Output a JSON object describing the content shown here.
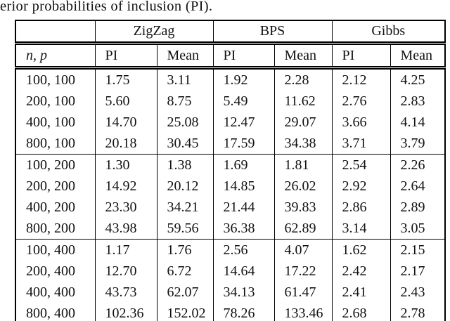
{
  "caption": "erior probabilities of inclusion (PI).",
  "table": {
    "corner_label": "",
    "group_headers": [
      "ZigZag",
      "BPS",
      "Gibbs"
    ],
    "row_key_header": "n, p",
    "metric_headers": [
      "PI",
      "Mean",
      "PI",
      "Mean",
      "PI",
      "Mean"
    ],
    "rows": [
      {
        "np": "100, 100",
        "cells": [
          "1.75",
          "3.11",
          "1.92",
          "2.28",
          "2.12",
          "4.25"
        ]
      },
      {
        "np": "200, 100",
        "cells": [
          "5.60",
          "8.75",
          "5.49",
          "11.62",
          "2.76",
          "2.83"
        ]
      },
      {
        "np": "400, 100",
        "cells": [
          "14.70",
          "25.08",
          "12.47",
          "29.07",
          "3.66",
          "4.14"
        ]
      },
      {
        "np": "800, 100",
        "cells": [
          "20.18",
          "30.45",
          "17.59",
          "34.38",
          "3.71",
          "3.79"
        ]
      },
      {
        "np": "100, 200",
        "cells": [
          "1.30",
          "1.38",
          "1.69",
          "1.81",
          "2.54",
          "2.26"
        ]
      },
      {
        "np": "200, 200",
        "cells": [
          "14.92",
          "20.12",
          "14.85",
          "26.02",
          "2.92",
          "2.64"
        ]
      },
      {
        "np": "400, 200",
        "cells": [
          "23.30",
          "34.21",
          "21.44",
          "39.83",
          "2.86",
          "2.89"
        ]
      },
      {
        "np": "800, 200",
        "cells": [
          "43.98",
          "59.56",
          "36.38",
          "62.89",
          "3.14",
          "3.05"
        ]
      },
      {
        "np": "100, 400",
        "cells": [
          "1.17",
          "1.76",
          "2.56",
          "4.07",
          "1.62",
          "2.15"
        ]
      },
      {
        "np": "200, 400",
        "cells": [
          "12.70",
          "6.72",
          "14.64",
          "17.22",
          "2.42",
          "2.17"
        ]
      },
      {
        "np": "400, 400",
        "cells": [
          "43.73",
          "62.07",
          "34.13",
          "61.47",
          "2.41",
          "2.43"
        ]
      },
      {
        "np": "800, 400",
        "cells": [
          "102.36",
          "152.02",
          "78.26",
          "133.46",
          "2.68",
          "2.78"
        ]
      }
    ]
  },
  "colors": {
    "text": "#111111",
    "border": "#000000",
    "background": "#ffffff"
  }
}
